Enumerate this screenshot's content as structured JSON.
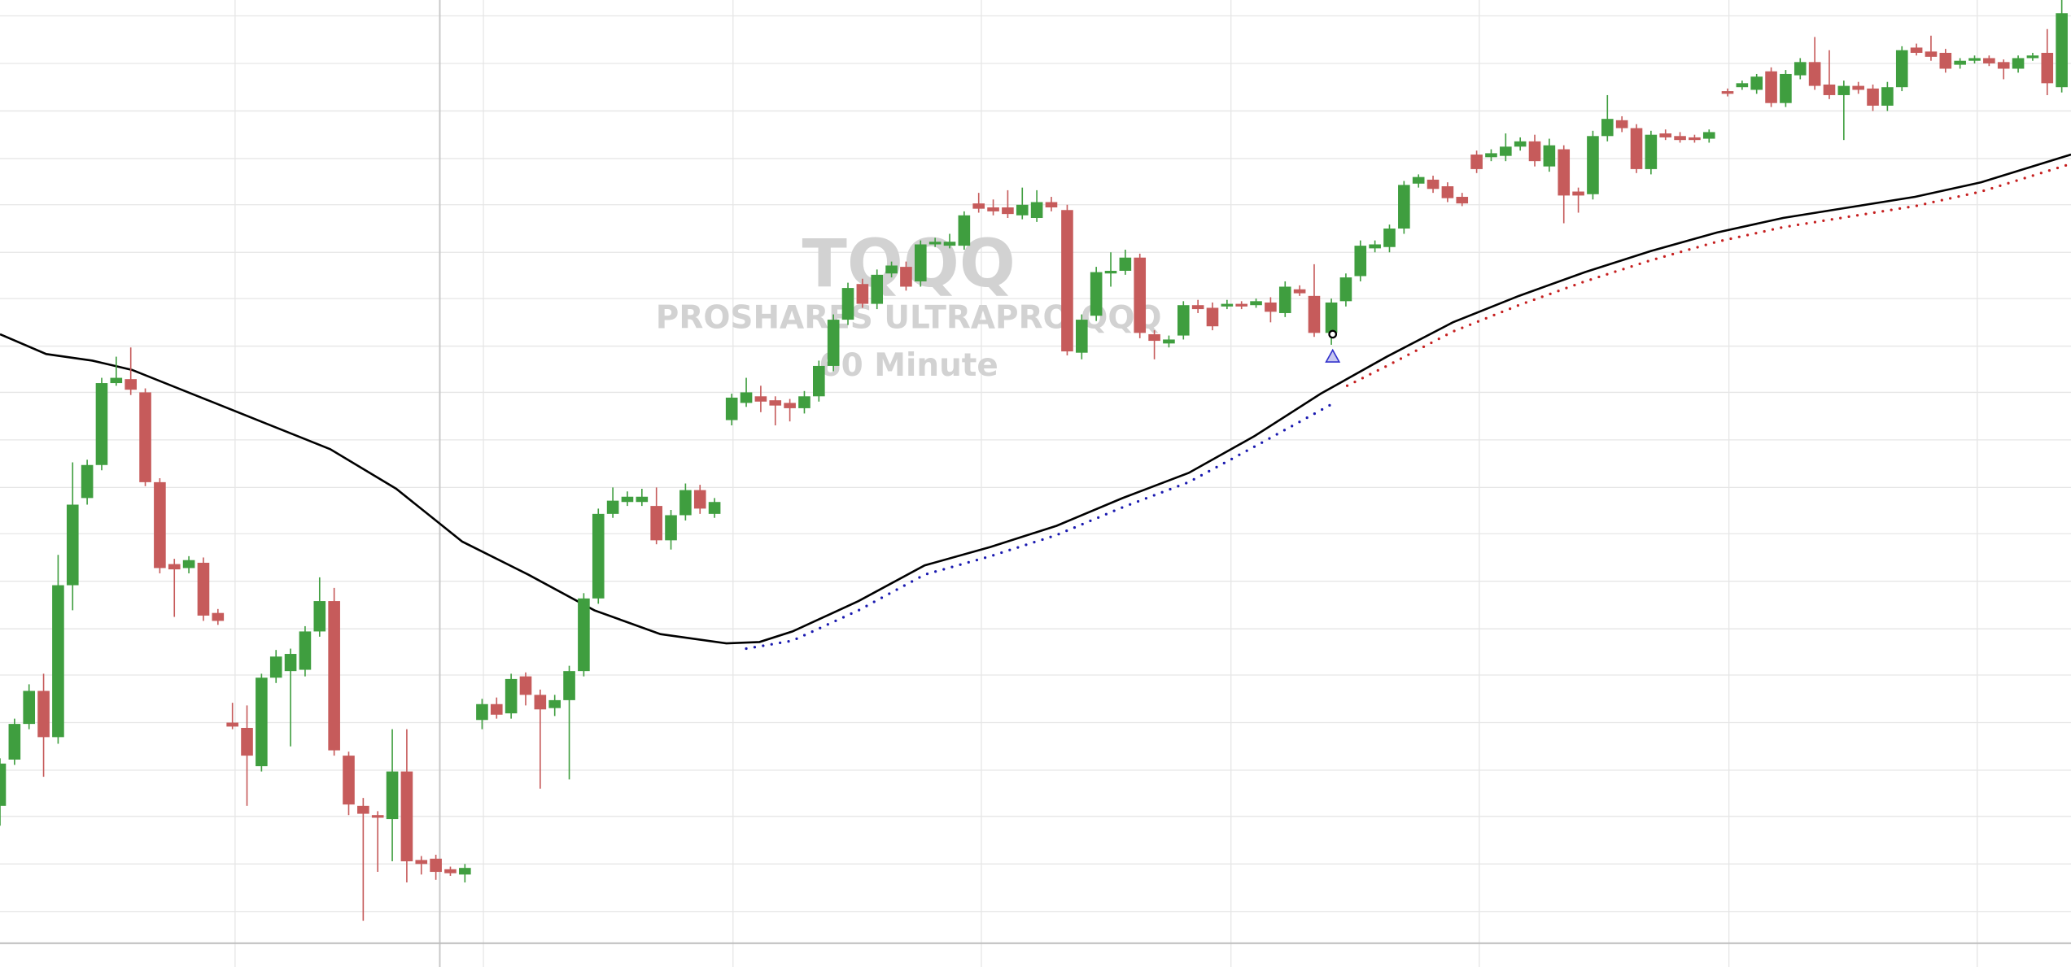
{
  "chart_data": {
    "type": "candlestick",
    "title": "TQQQ",
    "subtitle": "PROSHARES ULTRAPRO QQQ",
    "annotation": "60 Minute",
    "up_color": "#3f9e3f",
    "down_color": "#c65b5b",
    "grid": true,
    "xlim": [
      0,
      1568
    ],
    "ylim": [
      0,
      732
    ],
    "xticks": [
      178,
      333,
      366,
      555,
      743,
      932,
      1120,
      1309,
      1497
    ],
    "yticks": [
      720,
      684,
      648,
      612,
      577,
      541,
      506,
      470,
      435,
      399,
      363,
      328,
      292,
      256,
      221,
      185,
      149,
      114,
      78,
      42
    ],
    "x": [
      0,
      11,
      22,
      33,
      44,
      55,
      66,
      77,
      88,
      99,
      110,
      121,
      132,
      143,
      154,
      165,
      176,
      187,
      198,
      209,
      220,
      231,
      242,
      253,
      264,
      275,
      286,
      297,
      308,
      319,
      330,
      341,
      352,
      365,
      376,
      387,
      398,
      409,
      420,
      431,
      442,
      453,
      464,
      475,
      486,
      497,
      508,
      519,
      530,
      541,
      554,
      565,
      576,
      587,
      598,
      609,
      620,
      631,
      642,
      653,
      664,
      675,
      686,
      697,
      708,
      719,
      730,
      741,
      752,
      763,
      774,
      785,
      796,
      808,
      819,
      830,
      841,
      852,
      863,
      874,
      885,
      896,
      907,
      918,
      929,
      940,
      951,
      962,
      973,
      984,
      995,
      1008,
      1019,
      1030,
      1041,
      1052,
      1063,
      1074,
      1085,
      1096,
      1107,
      1118,
      1129,
      1140,
      1151,
      1162,
      1173,
      1184,
      1195,
      1206,
      1217,
      1228,
      1239,
      1250,
      1261,
      1272,
      1283,
      1294,
      1308,
      1319,
      1330,
      1341,
      1352,
      1363,
      1374,
      1385,
      1396,
      1407,
      1418,
      1429,
      1440,
      1451,
      1462,
      1473,
      1484,
      1495,
      1506,
      1517,
      1528,
      1539,
      1550,
      1561
    ],
    "open": [
      122,
      157,
      184,
      209,
      174,
      289,
      355,
      380,
      442,
      445,
      435,
      367,
      305,
      302,
      306,
      268,
      185,
      181,
      152,
      219,
      224,
      225,
      254,
      277,
      160,
      122,
      115,
      112,
      148,
      81,
      82,
      74,
      70,
      187,
      199,
      192,
      220,
      206,
      196,
      202,
      224,
      279,
      343,
      352,
      352,
      349,
      323,
      342,
      361,
      343,
      414,
      427,
      432,
      429,
      427,
      423,
      432,
      455,
      490,
      517,
      502,
      525,
      530,
      519,
      547,
      546,
      546,
      578,
      575,
      575,
      569,
      567,
      579,
      573,
      465,
      493,
      525,
      527,
      537,
      479,
      472,
      478,
      501,
      499,
      500,
      502,
      501,
      503,
      495,
      513,
      508,
      480,
      504,
      523,
      544,
      545,
      559,
      593,
      596,
      591,
      583,
      615,
      613,
      614,
      621,
      625,
      606,
      619,
      587,
      585,
      629,
      641,
      635,
      604,
      631,
      629,
      628,
      627,
      663,
      666,
      664,
      678,
      654,
      675,
      685,
      668,
      660,
      667,
      665,
      652,
      666,
      696,
      693,
      692,
      683,
      686,
      688,
      685,
      680,
      688,
      692,
      666
    ],
    "high": [
      158,
      188,
      214,
      222,
      312,
      382,
      384,
      446,
      462,
      469,
      438,
      370,
      309,
      311,
      310,
      271,
      200,
      198,
      222,
      240,
      241,
      258,
      295,
      287,
      163,
      128,
      118,
      180,
      180,
      84,
      85,
      76,
      78,
      203,
      204,
      222,
      223,
      210,
      206,
      228,
      283,
      347,
      363,
      360,
      362,
      363,
      346,
      366,
      365,
      355,
      434,
      446,
      440,
      432,
      430,
      436,
      459,
      494,
      518,
      521,
      528,
      534,
      534,
      550,
      552,
      555,
      572,
      586,
      581,
      588,
      590,
      588,
      583,
      577,
      494,
      530,
      541,
      543,
      540,
      482,
      478,
      504,
      505,
      503,
      505,
      504,
      506,
      507,
      519,
      516,
      532,
      506,
      525,
      550,
      550,
      562,
      595,
      600,
      599,
      594,
      586,
      618,
      619,
      631,
      628,
      630,
      627,
      622,
      590,
      633,
      660,
      644,
      638,
      633,
      634,
      632,
      630,
      634,
      665,
      671,
      676,
      681,
      679,
      688,
      704,
      694,
      671,
      670,
      668,
      670,
      697,
      699,
      705,
      695,
      688,
      690,
      690,
      687,
      690,
      692,
      710,
      732
    ],
    "low": [
      107,
      153,
      180,
      144,
      169,
      270,
      350,
      376,
      440,
      433,
      364,
      298,
      265,
      298,
      262,
      259,
      180,
      122,
      148,
      215,
      167,
      220,
      250,
      160,
      115,
      35,
      72,
      80,
      64,
      70,
      66,
      69,
      64,
      180,
      188,
      188,
      198,
      135,
      190,
      142,
      220,
      275,
      340,
      349,
      349,
      320,
      316,
      338,
      343,
      340,
      410,
      424,
      420,
      410,
      413,
      419,
      428,
      451,
      486,
      499,
      498,
      522,
      512,
      515,
      545,
      544,
      543,
      571,
      569,
      567,
      566,
      564,
      572,
      463,
      460,
      489,
      515,
      524,
      476,
      460,
      469,
      475,
      495,
      482,
      498,
      498,
      499,
      488,
      492,
      508,
      477,
      471,
      500,
      519,
      541,
      541,
      555,
      590,
      586,
      579,
      576,
      601,
      610,
      610,
      618,
      606,
      602,
      563,
      571,
      581,
      625,
      632,
      601,
      600,
      626,
      624,
      624,
      624,
      659,
      664,
      661,
      651,
      651,
      672,
      664,
      657,
      626,
      661,
      648,
      648,
      663,
      690,
      686,
      677,
      680,
      684,
      682,
      672,
      677,
      686,
      660,
      662
    ],
    "close": [
      154,
      184,
      209,
      174,
      289,
      350,
      380,
      442,
      446,
      437,
      367,
      302,
      301,
      308,
      266,
      262,
      182,
      160,
      219,
      235,
      237,
      254,
      277,
      164,
      123,
      116,
      113,
      148,
      80,
      78,
      72,
      71,
      75,
      199,
      191,
      218,
      206,
      195,
      202,
      224,
      279,
      343,
      353,
      356,
      356,
      323,
      342,
      361,
      347,
      352,
      431,
      435,
      428,
      425,
      423,
      432,
      455,
      490,
      514,
      502,
      524,
      531,
      515,
      547,
      549,
      549,
      569,
      574,
      572,
      570,
      577,
      579,
      575,
      466,
      490,
      526,
      527,
      537,
      480,
      474,
      475,
      501,
      498,
      485,
      502,
      500,
      504,
      496,
      515,
      510,
      480,
      503,
      522,
      546,
      547,
      559,
      592,
      598,
      589,
      582,
      578,
      604,
      616,
      621,
      625,
      610,
      622,
      584,
      584,
      629,
      642,
      635,
      604,
      630,
      628,
      626,
      626,
      632,
      661,
      669,
      674,
      654,
      676,
      685,
      667,
      660,
      667,
      664,
      652,
      666,
      694,
      692,
      689,
      680,
      686,
      688,
      684,
      680,
      688,
      690,
      669,
      722
    ],
    "lines": [
      {
        "color": "#000000",
        "style": "solid",
        "x": [
          0,
          35,
          70,
          100,
          150,
          200,
          250,
          300,
          350,
          400,
          450,
          500,
          550,
          575,
          600,
          650,
          700,
          750,
          800,
          850,
          900,
          950,
          1000,
          1050,
          1100,
          1150,
          1200,
          1250,
          1300,
          1350,
          1400,
          1450,
          1500,
          1568
        ],
        "values": [
          479,
          464,
          459,
          452,
          432,
          412,
          392,
          362,
          322,
          297,
          270,
          252,
          245,
          246,
          254,
          277,
          304,
          318,
          334,
          355,
          374,
          402,
          434,
          462,
          488,
          508,
          526,
          542,
          556,
          567,
          575,
          583,
          594,
          615
        ]
      },
      {
        "color": "#1a1ab0",
        "style": "dotted",
        "x": [
          565,
          600,
          650,
          700,
          750,
          800,
          850,
          900,
          950,
          1010
        ],
        "values": [
          244,
          250,
          273,
          300,
          314,
          330,
          351,
          370,
          397,
          430
        ]
      },
      {
        "color": "#c62020",
        "style": "dotted",
        "x": [
          1020,
          1050,
          1100,
          1150,
          1200,
          1250,
          1300,
          1350,
          1400,
          1450,
          1500,
          1568
        ],
        "values": [
          443,
          458,
          484,
          504,
          522,
          538,
          552,
          563,
          571,
          579,
          590,
          611
        ]
      }
    ]
  }
}
